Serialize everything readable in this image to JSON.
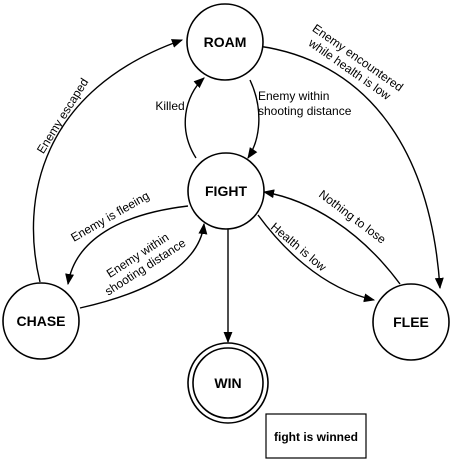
{
  "states": {
    "roam": "ROAM",
    "fight": "FIGHT",
    "chase": "CHASE",
    "flee": "FLEE",
    "win": "WIN"
  },
  "transitions": {
    "chase_to_roam": "Enemy escaped",
    "roam_to_flee": [
      "Enemy encountered",
      "while health is low"
    ],
    "fight_to_roam": "Killed",
    "roam_to_fight": [
      "Enemy within",
      "shooting distance"
    ],
    "fight_to_chase": "Enemy is fleeing",
    "chase_to_fight": [
      "Enemy within",
      "shooting distance"
    ],
    "flee_to_fight": "Nothing to lose",
    "fight_to_flee": "Health is low"
  },
  "note": "fight is winned"
}
